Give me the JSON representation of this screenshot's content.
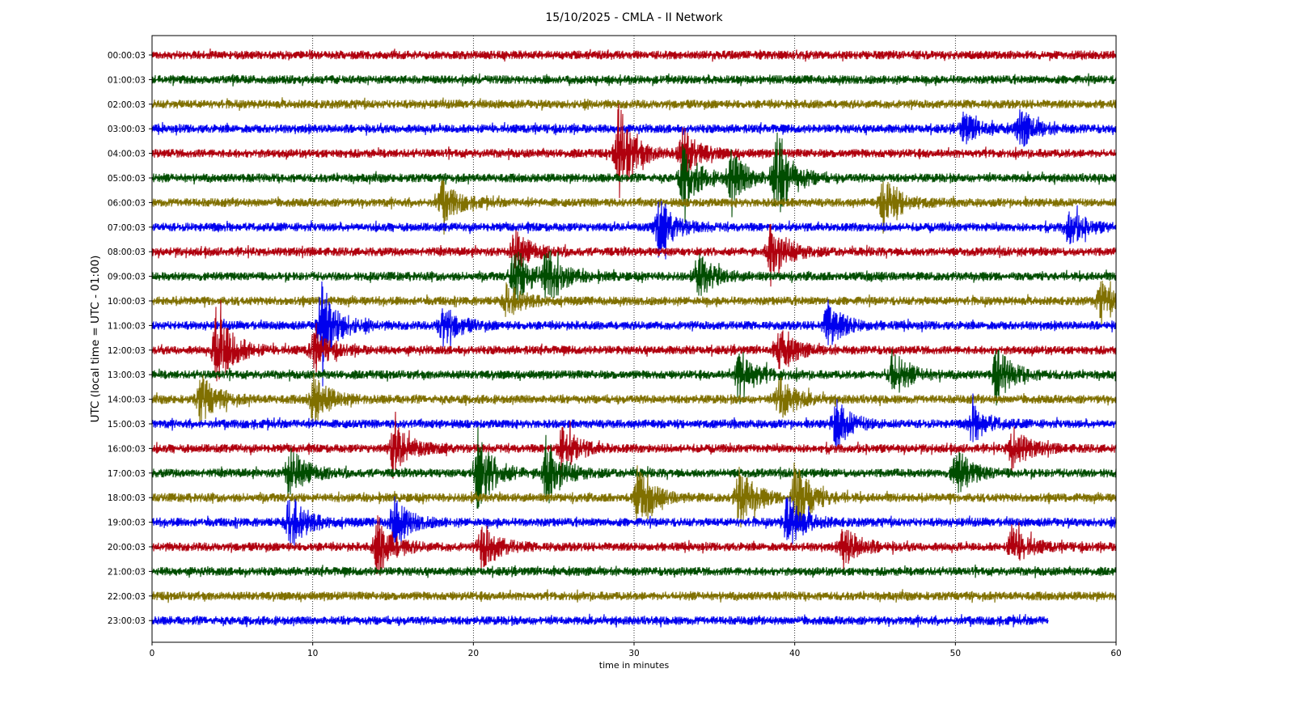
{
  "chart_data": {
    "type": "line",
    "title": "15/10/2025 - CMLA - II Network",
    "xlabel": "time in minutes",
    "ylabel": "UTC (local time = UTC - 01:00)",
    "xlim": [
      0,
      60
    ],
    "x_ticks": [
      "0",
      "10",
      "20",
      "30",
      "40",
      "50",
      "60"
    ],
    "grid": "vertical dotted at major x ticks",
    "colors": [
      "#b0000e",
      "#004d00",
      "#807000",
      "#0000ee"
    ],
    "rows": [
      {
        "label": "00:00:03",
        "color": "#b0000e",
        "end_minute": 60,
        "events": []
      },
      {
        "label": "01:00:03",
        "color": "#004d00",
        "end_minute": 60,
        "events": []
      },
      {
        "label": "02:00:03",
        "color": "#807000",
        "end_minute": 60,
        "events": []
      },
      {
        "label": "03:00:03",
        "color": "#0000ee",
        "end_minute": 60,
        "events": [
          {
            "t": 50.5,
            "amp": 0.5
          },
          {
            "t": 54,
            "amp": 0.6
          }
        ]
      },
      {
        "label": "04:00:03",
        "color": "#b0000e",
        "end_minute": 60,
        "events": [
          {
            "t": 29,
            "amp": 1.6
          },
          {
            "t": 33,
            "amp": 0.8
          }
        ]
      },
      {
        "label": "05:00:03",
        "color": "#004d00",
        "end_minute": 60,
        "events": [
          {
            "t": 33,
            "amp": 1.0
          },
          {
            "t": 36,
            "amp": 0.9
          },
          {
            "t": 38.8,
            "amp": 1.5
          }
        ]
      },
      {
        "label": "06:00:03",
        "color": "#807000",
        "end_minute": 60,
        "events": [
          {
            "t": 18,
            "amp": 0.7
          },
          {
            "t": 45.5,
            "amp": 0.9
          }
        ]
      },
      {
        "label": "07:00:03",
        "color": "#0000ee",
        "end_minute": 60,
        "events": [
          {
            "t": 31.5,
            "amp": 0.9
          },
          {
            "t": 57,
            "amp": 0.6
          }
        ]
      },
      {
        "label": "08:00:03",
        "color": "#b0000e",
        "end_minute": 60,
        "events": [
          {
            "t": 22.5,
            "amp": 0.7
          },
          {
            "t": 38.5,
            "amp": 1.0
          }
        ]
      },
      {
        "label": "09:00:03",
        "color": "#004d00",
        "end_minute": 60,
        "events": [
          {
            "t": 22.5,
            "amp": 1.0
          },
          {
            "t": 24.5,
            "amp": 0.9
          },
          {
            "t": 34,
            "amp": 0.7
          }
        ]
      },
      {
        "label": "10:00:03",
        "color": "#807000",
        "end_minute": 60,
        "events": [
          {
            "t": 22,
            "amp": 0.6
          },
          {
            "t": 59,
            "amp": 0.6
          }
        ]
      },
      {
        "label": "11:00:03",
        "color": "#0000ee",
        "end_minute": 60,
        "events": [
          {
            "t": 10.5,
            "amp": 1.4
          },
          {
            "t": 18,
            "amp": 0.7
          },
          {
            "t": 42,
            "amp": 0.8
          }
        ]
      },
      {
        "label": "12:00:03",
        "color": "#b0000e",
        "end_minute": 60,
        "events": [
          {
            "t": 4,
            "amp": 1.5
          },
          {
            "t": 10,
            "amp": 0.6
          },
          {
            "t": 39,
            "amp": 0.7
          }
        ]
      },
      {
        "label": "13:00:03",
        "color": "#004d00",
        "end_minute": 60,
        "events": [
          {
            "t": 36.5,
            "amp": 0.9
          },
          {
            "t": 46,
            "amp": 0.8
          },
          {
            "t": 52.5,
            "amp": 0.9
          }
        ]
      },
      {
        "label": "14:00:03",
        "color": "#807000",
        "end_minute": 60,
        "events": [
          {
            "t": 3,
            "amp": 0.8
          },
          {
            "t": 10,
            "amp": 0.8
          },
          {
            "t": 39,
            "amp": 0.8
          }
        ]
      },
      {
        "label": "15:00:03",
        "color": "#0000ee",
        "end_minute": 60,
        "events": [
          {
            "t": 42.5,
            "amp": 0.8
          },
          {
            "t": 51,
            "amp": 0.6
          }
        ]
      },
      {
        "label": "16:00:03",
        "color": "#b0000e",
        "end_minute": 60,
        "events": [
          {
            "t": 15,
            "amp": 0.9
          },
          {
            "t": 25.5,
            "amp": 0.8
          },
          {
            "t": 53.5,
            "amp": 0.7
          }
        ]
      },
      {
        "label": "17:00:03",
        "color": "#004d00",
        "end_minute": 60,
        "events": [
          {
            "t": 8.5,
            "amp": 0.9
          },
          {
            "t": 20.2,
            "amp": 1.4
          },
          {
            "t": 24.5,
            "amp": 1.1
          },
          {
            "t": 50,
            "amp": 0.8
          }
        ]
      },
      {
        "label": "18:00:03",
        "color": "#807000",
        "end_minute": 60,
        "events": [
          {
            "t": 30.2,
            "amp": 0.9
          },
          {
            "t": 36.5,
            "amp": 1.0
          },
          {
            "t": 40,
            "amp": 1.3
          }
        ]
      },
      {
        "label": "19:00:03",
        "color": "#0000ee",
        "end_minute": 60,
        "events": [
          {
            "t": 8.5,
            "amp": 1.0
          },
          {
            "t": 15,
            "amp": 0.8
          },
          {
            "t": 39.5,
            "amp": 0.9
          }
        ]
      },
      {
        "label": "20:00:03",
        "color": "#b0000e",
        "end_minute": 60,
        "events": [
          {
            "t": 14,
            "amp": 1.0
          },
          {
            "t": 20.5,
            "amp": 0.8
          },
          {
            "t": 43,
            "amp": 0.7
          },
          {
            "t": 53.5,
            "amp": 0.7
          }
        ]
      },
      {
        "label": "21:00:03",
        "color": "#004d00",
        "end_minute": 60,
        "events": []
      },
      {
        "label": "22:00:03",
        "color": "#807000",
        "end_minute": 60,
        "events": []
      },
      {
        "label": "23:00:03",
        "color": "#0000ee",
        "end_minute": 55.8,
        "events": []
      }
    ]
  }
}
